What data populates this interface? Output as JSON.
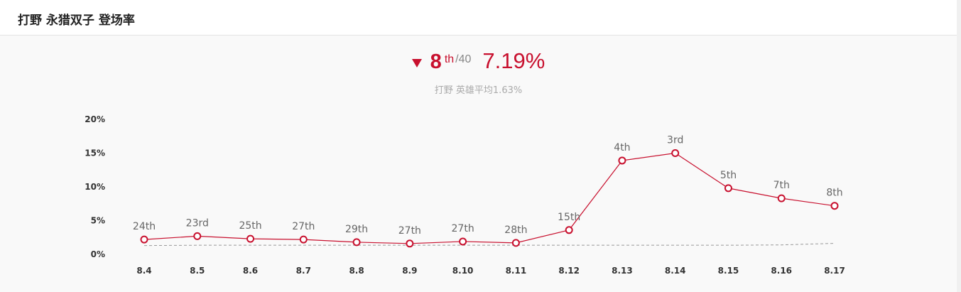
{
  "header": {
    "title": "打野 永猎双子 登场率"
  },
  "summary": {
    "trend": "down",
    "rank": "8",
    "rank_suffix": "th",
    "rank_total": "/40",
    "rate": "7.19%",
    "average_text": "打野 英雄平均1.63%"
  },
  "colors": {
    "accent": "#c8102e",
    "average_line": "#999999"
  },
  "chart_data": {
    "type": "line",
    "categories": [
      "8.4",
      "8.5",
      "8.6",
      "8.7",
      "8.8",
      "8.9",
      "8.10",
      "8.11",
      "8.12",
      "8.13",
      "8.14",
      "8.15",
      "8.16",
      "8.17"
    ],
    "y_ticks": [
      "20%",
      "15%",
      "10%",
      "5%",
      "0%"
    ],
    "ylim": [
      0,
      20
    ],
    "series": [
      {
        "values": [
          2.2,
          2.7,
          2.3,
          2.2,
          1.8,
          1.6,
          1.9,
          1.7,
          3.6,
          13.9,
          15.0,
          9.8,
          8.3,
          7.19
        ],
        "point_labels": [
          "24th",
          "23rd",
          "25th",
          "27th",
          "29th",
          "27th",
          "27th",
          "28th",
          "15th",
          "4th",
          "3rd",
          "5th",
          "7th",
          "8th"
        ]
      },
      {
        "style": "dashed",
        "values": [
          1.3,
          1.35,
          1.35,
          1.35,
          1.35,
          1.35,
          1.35,
          1.35,
          1.35,
          1.35,
          1.35,
          1.35,
          1.4,
          1.63
        ]
      }
    ],
    "grid": false,
    "legend": "none"
  }
}
